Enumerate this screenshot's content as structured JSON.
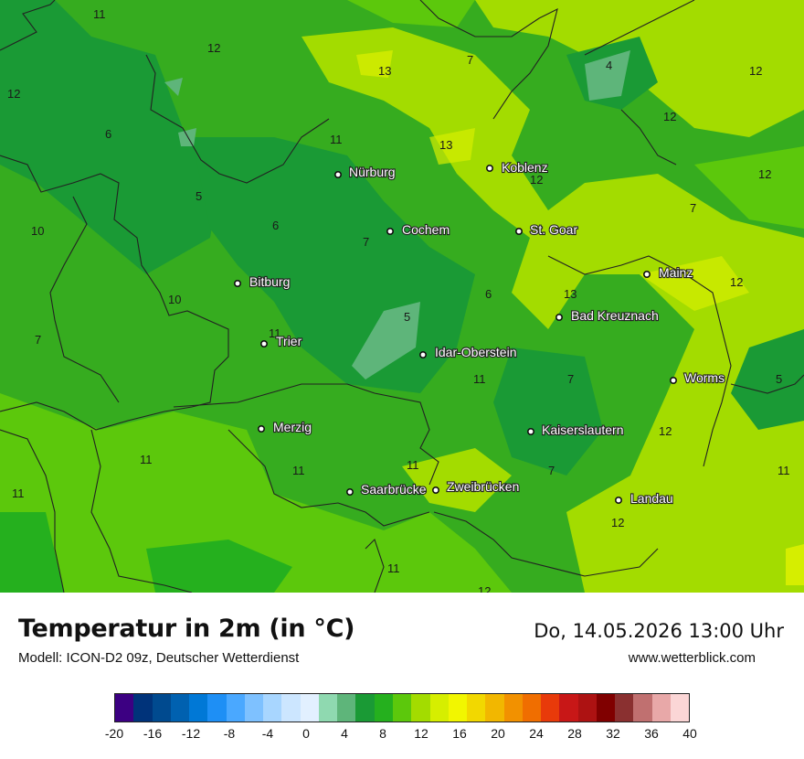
{
  "title": "Temperatur in 2m (in °C)",
  "subtitle": "Modell: ICON-D2 09z, Deutscher Wetterdienst",
  "datetime": "Do, 14.05.2026 13:00 Uhr",
  "website": "www.wetterblick.com",
  "cities": [
    {
      "name": "Nürburg"
    },
    {
      "name": "Koblenz"
    },
    {
      "name": "Cochem"
    },
    {
      "name": "St. Goar"
    },
    {
      "name": "Mainz"
    },
    {
      "name": "Bitburg"
    },
    {
      "name": "Bad Kreuznach"
    },
    {
      "name": "Trier"
    },
    {
      "name": "Idar-Oberstein"
    },
    {
      "name": "Worms"
    },
    {
      "name": "Merzig"
    },
    {
      "name": "Kaiserslautern"
    },
    {
      "name": "Saarbrücke"
    },
    {
      "name": "Zweibrücken"
    },
    {
      "name": "Landau"
    }
  ],
  "temperature_labels": [
    "11",
    "12",
    "12",
    "13",
    "7",
    "4",
    "12",
    "12",
    "6",
    "11",
    "13",
    "12",
    "5",
    "6",
    "7",
    "10",
    "12",
    "7",
    "12",
    "13",
    "10",
    "5",
    "11",
    "7",
    "6",
    "7",
    "11",
    "5",
    "12",
    "11",
    "11",
    "11",
    "7",
    "11",
    "11",
    "11",
    "12",
    "12"
  ],
  "legend": {
    "colors": [
      "#3c0082",
      "#00337a",
      "#004a8f",
      "#0061b0",
      "#0078d6",
      "#1e8ff5",
      "#4aa8ff",
      "#7ec1ff",
      "#a8d6ff",
      "#cce6ff",
      "#e2f0ff",
      "#8fd9b0",
      "#5eb57a",
      "#1a9a35",
      "#25b01e",
      "#5cc80c",
      "#a3dc00",
      "#d6ee00",
      "#f2f600",
      "#f2d800",
      "#f2b700",
      "#f29100",
      "#f06e00",
      "#e83a0a",
      "#c81717",
      "#ad1212",
      "#800000",
      "#8a3030",
      "#c07070",
      "#e8a8a8",
      "#fbd6d6"
    ],
    "tick_labels": [
      "-20",
      "-16",
      "-12",
      "-8",
      "-4",
      "0",
      "4",
      "8",
      "12",
      "16",
      "20",
      "24",
      "28",
      "32",
      "36",
      "40"
    ]
  }
}
